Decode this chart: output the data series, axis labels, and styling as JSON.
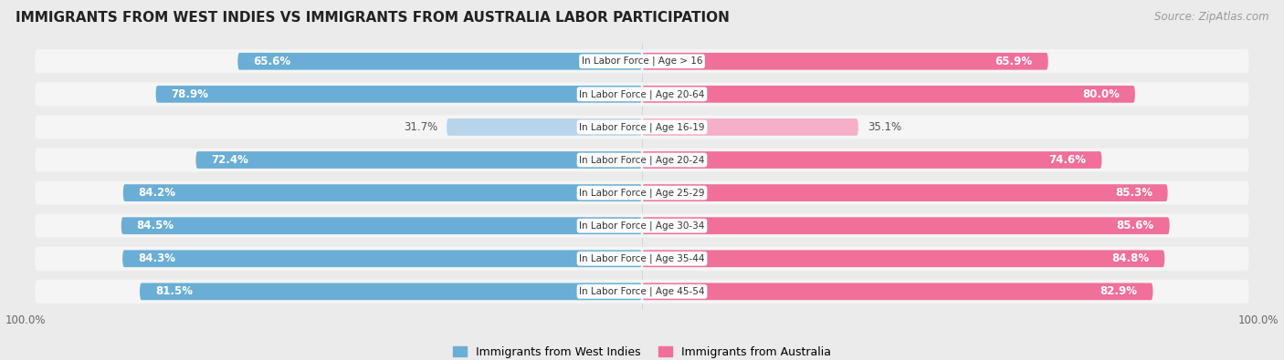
{
  "title": "IMMIGRANTS FROM WEST INDIES VS IMMIGRANTS FROM AUSTRALIA LABOR PARTICIPATION",
  "source": "Source: ZipAtlas.com",
  "categories": [
    "In Labor Force | Age > 16",
    "In Labor Force | Age 20-64",
    "In Labor Force | Age 16-19",
    "In Labor Force | Age 20-24",
    "In Labor Force | Age 25-29",
    "In Labor Force | Age 30-34",
    "In Labor Force | Age 35-44",
    "In Labor Force | Age 45-54"
  ],
  "west_indies_values": [
    65.6,
    78.9,
    31.7,
    72.4,
    84.2,
    84.5,
    84.3,
    81.5
  ],
  "australia_values": [
    65.9,
    80.0,
    35.1,
    74.6,
    85.3,
    85.6,
    84.8,
    82.9
  ],
  "west_indies_color_strong": "#6aaed6",
  "west_indies_color_light": "#b8d4ea",
  "australia_color_strong": "#f0709a",
  "australia_color_light": "#f5afc8",
  "max_value": 100.0,
  "legend_wi": "Immigrants from West Indies",
  "legend_au": "Immigrants from Australia",
  "background_color": "#ebebeb",
  "row_bg_color": "#f5f5f5",
  "threshold_strong": 50.0,
  "title_fontsize": 11,
  "label_fontsize": 8.5,
  "val_fontsize": 8.5
}
